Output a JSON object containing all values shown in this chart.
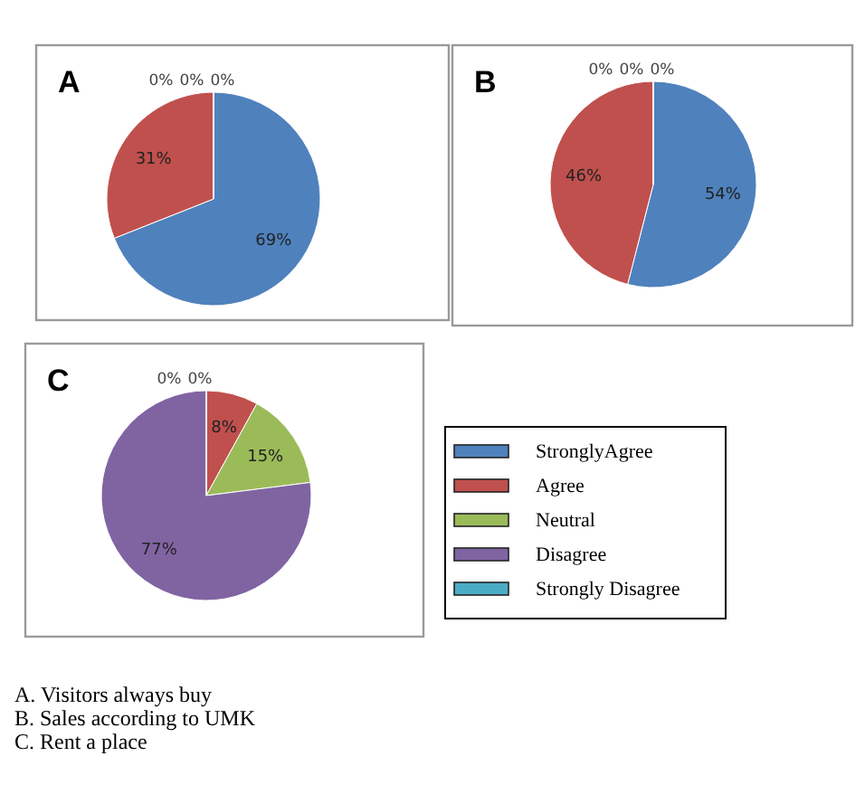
{
  "chart_data": [
    {
      "type": "pie",
      "title": "A",
      "categories": [
        "StronglyAgree",
        "Agree",
        "Neutral",
        "Disagree",
        "Strongly Disagree"
      ],
      "values": [
        69,
        31,
        0,
        0,
        0
      ],
      "colors": [
        "#4f81bd",
        "#c0504d",
        "#9bbb59",
        "#8064a2",
        "#4bacc6"
      ],
      "value_labels": [
        "69%",
        "31%",
        "0%",
        "0%",
        "0%"
      ],
      "legend": "bottom right"
    },
    {
      "type": "pie",
      "title": "B",
      "categories": [
        null,
        null,
        null,
        null,
        null
      ],
      "values": [
        54,
        46,
        0,
        0,
        0
      ],
      "colors": [
        "#4f81bd",
        "#c0504d",
        "#9bbb59",
        "#8064a2",
        "#4bacc6"
      ],
      "value_labels": [
        "54%",
        "46%",
        "0%",
        "0%",
        "0%"
      ]
    },
    {
      "type": "pie",
      "title": "C",
      "categories": [
        null,
        null,
        null,
        null,
        null
      ],
      "values": [
        0,
        8,
        15,
        77,
        0
      ],
      "colors": [
        "#4f81bd",
        "#c0504d",
        "#9bbb59",
        "#8064a2",
        "#4bacc6"
      ],
      "value_labels": [
        "0%",
        "8%",
        "15%",
        "77%",
        "0%"
      ],
      "annotations": [
        "A. Visitors always buy",
        "B. Sales according to UMK",
        "C. Rent a place"
      ]
    }
  ]
}
